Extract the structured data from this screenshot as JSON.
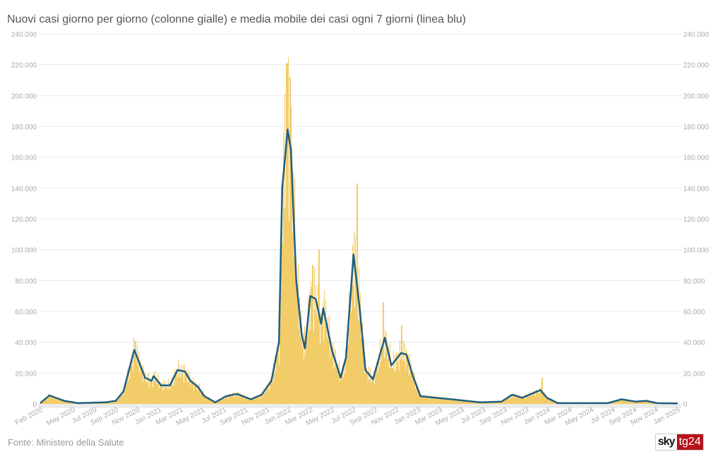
{
  "chart_data": {
    "type": "bar",
    "title": "Nuovi casi giorno per giorno (colonne gialle) e media mobile dei casi ogni 7 giorni (linea blu)",
    "source": "Fonte: Ministero della Salute",
    "xlabel": "",
    "ylabel": "",
    "ylim": [
      0,
      240000
    ],
    "yticks": [
      0,
      20000,
      40000,
      60000,
      80000,
      100000,
      120000,
      140000,
      160000,
      180000,
      200000,
      220000,
      240000
    ],
    "ytick_labels": [
      "0",
      "20.000",
      "40.000",
      "60.000",
      "80.000",
      "100.000",
      "120.000",
      "140.000",
      "160.000",
      "180.000",
      "200.000",
      "220.000",
      "240.000"
    ],
    "x_unit": "months since Feb 2020",
    "xlim": [
      0,
      59
    ],
    "xticks": [
      0,
      3,
      5,
      7,
      9,
      11,
      13,
      15,
      17,
      19,
      21,
      23,
      25,
      27,
      29,
      31,
      33,
      35,
      37,
      39,
      41,
      43,
      45,
      47,
      49,
      51,
      53,
      55,
      57,
      59
    ],
    "xtick_labels": [
      "Feb 2020",
      "May 2020",
      "Jul 2020",
      "Sep 2020",
      "Nov 2020",
      "Jan 2021",
      "Mar 2021",
      "May 2021",
      "Jul 2021",
      "Sep 2021",
      "Nov 2021",
      "Jan 2022",
      "Mar 2022",
      "May 2022",
      "Jul 2022",
      "Sep 2022",
      "Nov 2022",
      "Jan 2023",
      "Mar 2023",
      "May 2023",
      "Jul 2023",
      "Sep 2023",
      "Nov 2023",
      "Jan 2024",
      "Mar 2024",
      "May 2024",
      "Jul 2024",
      "Sep 2024",
      "Nov 2024",
      "Jan 2025"
    ],
    "series": [
      {
        "name": "media mobile 7 giorni (linea blu)",
        "color": "#1f5f80",
        "points": [
          [
            0,
            500
          ],
          [
            0.85,
            5500
          ],
          [
            2.2,
            2000
          ],
          [
            3.5,
            500
          ],
          [
            6,
            1000
          ],
          [
            7,
            2000
          ],
          [
            7.7,
            8000
          ],
          [
            8.7,
            35000
          ],
          [
            9.7,
            17000
          ],
          [
            10.3,
            15000
          ],
          [
            10.5,
            18000
          ],
          [
            11.2,
            12000
          ],
          [
            12,
            12000
          ],
          [
            12.7,
            22000
          ],
          [
            13.4,
            21000
          ],
          [
            13.9,
            15000
          ],
          [
            14.6,
            11000
          ],
          [
            15.2,
            5000
          ],
          [
            16.2,
            1000
          ],
          [
            17.2,
            5000
          ],
          [
            18.2,
            6500
          ],
          [
            19.5,
            3000
          ],
          [
            20.5,
            6000
          ],
          [
            21.4,
            15000
          ],
          [
            22.1,
            40000
          ],
          [
            22.4,
            140000
          ],
          [
            22.9,
            178000
          ],
          [
            23.2,
            165000
          ],
          [
            23.7,
            80000
          ],
          [
            24.2,
            45000
          ],
          [
            24.5,
            36000
          ],
          [
            25,
            70000
          ],
          [
            25.5,
            68000
          ],
          [
            26,
            52000
          ],
          [
            26.2,
            62000
          ],
          [
            27,
            35000
          ],
          [
            27.8,
            17000
          ],
          [
            28.3,
            30000
          ],
          [
            29,
            97000
          ],
          [
            29.6,
            60000
          ],
          [
            30.1,
            22000
          ],
          [
            30.8,
            16000
          ],
          [
            31.9,
            43000
          ],
          [
            32.5,
            25000
          ],
          [
            33.4,
            33000
          ],
          [
            33.9,
            32000
          ],
          [
            34.5,
            18000
          ],
          [
            35.2,
            5000
          ],
          [
            38.1,
            3000
          ],
          [
            40.7,
            1000
          ],
          [
            42.7,
            1500
          ],
          [
            43.7,
            6000
          ],
          [
            44.6,
            4000
          ],
          [
            46.3,
            9000
          ],
          [
            46.9,
            4000
          ],
          [
            47.9,
            500
          ],
          [
            52.5,
            500
          ],
          [
            53.8,
            3000
          ],
          [
            55.1,
            1500
          ],
          [
            56.1,
            2000
          ],
          [
            57.1,
            500
          ],
          [
            59,
            300
          ]
        ]
      },
      {
        "name": "nuovi casi giornalieri (colonne gialle)",
        "color": "#f2c85b",
        "peaks": [
          [
            8.8,
            41000
          ],
          [
            22.8,
            221000
          ],
          [
            23.1,
            212000
          ],
          [
            25.2,
            90000
          ],
          [
            25.8,
            100000
          ],
          [
            29.3,
            143000
          ],
          [
            31.7,
            66000
          ],
          [
            33.4,
            51000
          ],
          [
            46.4,
            17000
          ]
        ]
      }
    ]
  }
}
